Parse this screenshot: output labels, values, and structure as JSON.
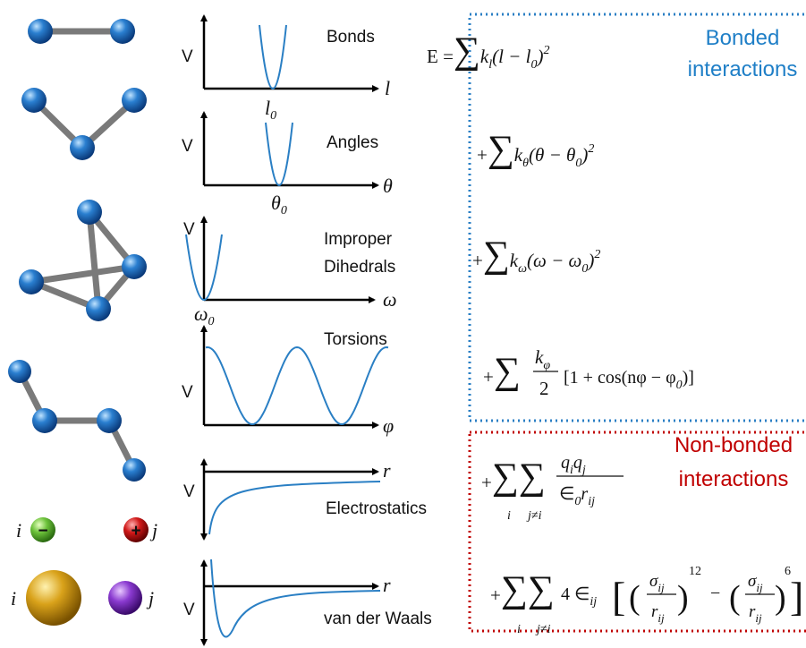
{
  "rows": [
    {
      "label": [
        "Bonds"
      ],
      "y_axis": "V",
      "x_axis": "l",
      "eq": [
        "l",
        "0"
      ]
    },
    {
      "label": [
        "Angles"
      ],
      "y_axis": "V",
      "x_axis": "θ",
      "eq": [
        "θ",
        "0"
      ]
    },
    {
      "label": [
        "Improper",
        "Dihedrals"
      ],
      "y_axis": "V",
      "x_axis": "ω",
      "eq": [
        "ω",
        "0"
      ]
    },
    {
      "label": [
        "Torsions"
      ],
      "y_axis": "V",
      "x_axis": "φ"
    },
    {
      "label": [
        "Electrostatics"
      ],
      "y_axis": "V",
      "x_axis": "r"
    },
    {
      "label": [
        "van der Waals"
      ],
      "y_axis": "V",
      "x_axis": "r"
    }
  ],
  "atoms": {
    "charged": {
      "left": "i",
      "left_sign": "−",
      "right_sign": "+",
      "right": "j"
    },
    "vdw": {
      "left": "i",
      "right": "j"
    }
  },
  "groups": {
    "bonded": [
      "Bonded",
      "interactions"
    ],
    "nonbonded": [
      "Non-bonded",
      "interactions"
    ]
  },
  "formulas": [
    [
      "E =",
      "∑",
      "k",
      "l",
      "(l − l",
      "0",
      ")",
      "2"
    ],
    [
      "+",
      "∑",
      "k",
      "θ",
      "(θ − θ",
      "0",
      ")",
      "2"
    ],
    [
      "+",
      "∑",
      "k",
      "ω",
      "(ω − ω",
      "0",
      ")",
      "2"
    ],
    [
      "+",
      "∑",
      "k",
      "φ",
      "2",
      "[1 + cos(nφ − φ",
      "0",
      ")]"
    ],
    [
      "+",
      "∑",
      "∑",
      "i",
      "j≠i",
      "q",
      "i",
      "q",
      "j",
      "∈",
      "0",
      "r",
      "ij"
    ],
    [
      "+",
      "∑",
      "∑",
      "i",
      "j≠i",
      "4 ∈",
      "ij",
      "[",
      "(",
      "σ",
      "ij",
      "r",
      "ij",
      ")",
      "12",
      "−",
      "(",
      "σ",
      "ij",
      "r",
      "ij",
      ")",
      "6",
      "]"
    ]
  ]
}
